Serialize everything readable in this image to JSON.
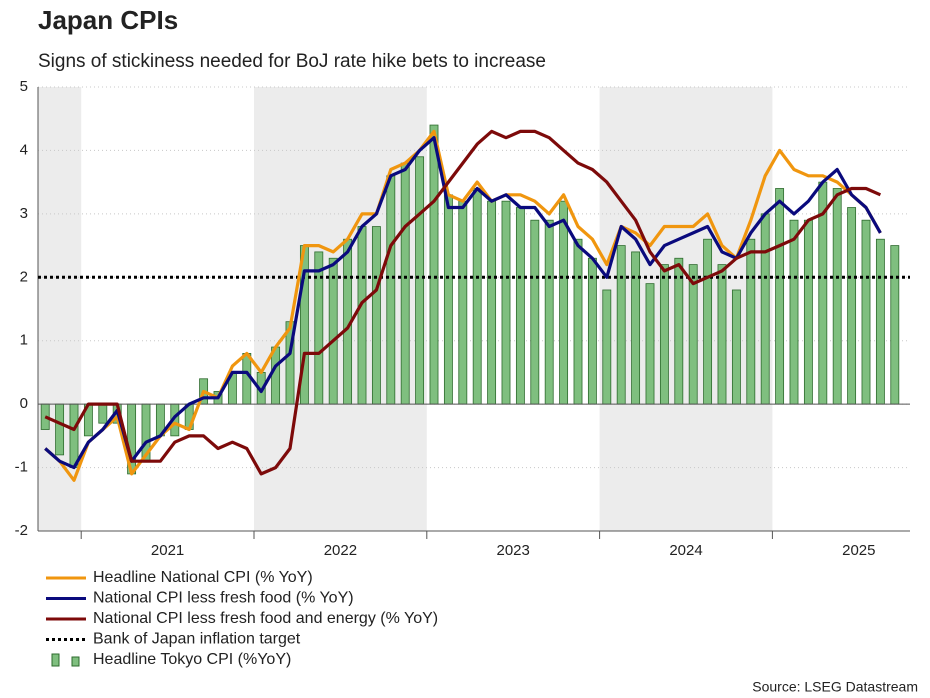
{
  "chart_data": {
    "type": "bar_line",
    "title": "Japan CPIs",
    "subtitle": "Signs of stickiness needed for BoJ rate hike bets to increase",
    "source": "Source: LSEG Datastream",
    "categories": [
      null,
      null,
      null,
      null,
      null,
      null,
      null,
      null,
      null,
      "2021",
      null,
      null,
      null,
      null,
      null,
      null,
      null,
      null,
      null,
      null,
      null,
      "2022",
      null,
      null,
      null,
      null,
      null,
      null,
      null,
      null,
      null,
      null,
      null,
      "2023",
      null,
      null,
      null,
      null,
      null,
      null,
      null,
      null,
      null,
      null,
      null,
      "2024",
      null,
      null,
      null,
      null,
      null,
      null,
      null,
      null,
      null,
      null,
      null,
      "2025",
      null,
      null
    ],
    "ylim": [
      -2,
      5
    ],
    "yticks": [
      -2,
      -1,
      0,
      1,
      2,
      3,
      4,
      5
    ],
    "grid": true,
    "reference_line": {
      "name": "Bank of Japan inflation target",
      "value": 2,
      "color": "#000000"
    },
    "series": [
      {
        "name": "Headline National CPI (% YoY)",
        "type": "line",
        "color": "#f0960f",
        "values": [
          -0.7,
          -0.9,
          -1.2,
          -0.6,
          -0.4,
          -0.2,
          -1.1,
          -0.8,
          -0.5,
          -0.3,
          -0.4,
          0.2,
          0.1,
          0.6,
          0.8,
          0.5,
          0.9,
          1.2,
          2.5,
          2.5,
          2.4,
          2.6,
          3.0,
          3.0,
          3.7,
          3.8,
          4.0,
          4.3,
          3.3,
          3.2,
          3.5,
          3.2,
          3.3,
          3.3,
          3.2,
          3.0,
          3.3,
          2.8,
          2.6,
          2.2,
          2.8,
          2.7,
          2.5,
          2.8,
          2.8,
          2.8,
          3.0,
          2.5,
          2.3,
          2.9,
          3.6,
          4.0,
          3.7,
          3.6,
          3.6,
          3.5,
          3.3,
          3.1,
          2.7,
          null
        ]
      },
      {
        "name": "National CPI less fresh food (% YoY)",
        "type": "line",
        "color": "#0a0a7d",
        "values": [
          -0.7,
          -0.9,
          -1.0,
          -0.6,
          -0.4,
          -0.1,
          -0.9,
          -0.6,
          -0.5,
          -0.2,
          0.0,
          0.1,
          0.1,
          0.5,
          0.5,
          0.2,
          0.6,
          0.8,
          2.1,
          2.1,
          2.2,
          2.4,
          2.8,
          3.0,
          3.6,
          3.7,
          4.0,
          4.2,
          3.1,
          3.1,
          3.4,
          3.2,
          3.3,
          3.1,
          3.1,
          2.8,
          2.9,
          2.5,
          2.3,
          2.0,
          2.8,
          2.6,
          2.2,
          2.5,
          2.6,
          2.7,
          2.8,
          2.4,
          2.3,
          2.7,
          3.0,
          3.2,
          3.0,
          3.2,
          3.5,
          3.7,
          3.3,
          3.1,
          2.7,
          null
        ]
      },
      {
        "name": "National CPI less fresh food and energy (% YoY)",
        "type": "line",
        "color": "#7d0a0a",
        "values": [
          -0.2,
          -0.3,
          -0.4,
          0.0,
          0.0,
          0.0,
          -0.9,
          -0.9,
          -0.9,
          -0.6,
          -0.5,
          -0.5,
          -0.7,
          -0.6,
          -0.7,
          -1.1,
          -1.0,
          -0.7,
          0.8,
          0.8,
          1.0,
          1.2,
          1.6,
          1.8,
          2.5,
          2.8,
          3.0,
          3.2,
          3.5,
          3.8,
          4.1,
          4.3,
          4.2,
          4.3,
          4.3,
          4.2,
          4.0,
          3.8,
          3.7,
          3.5,
          3.2,
          2.9,
          2.4,
          2.1,
          2.2,
          1.9,
          2.0,
          2.1,
          2.3,
          2.4,
          2.4,
          2.5,
          2.6,
          2.9,
          3.0,
          3.3,
          3.4,
          3.4,
          3.3,
          null
        ]
      },
      {
        "name": "Headline Tokyo CPI (%YoY)",
        "type": "bar",
        "color": "#7fbf7f",
        "values": [
          -0.4,
          -0.8,
          -1.0,
          -0.5,
          -0.3,
          -0.3,
          -1.1,
          -0.9,
          -0.5,
          -0.5,
          -0.4,
          0.4,
          0.2,
          0.5,
          0.8,
          0.5,
          0.9,
          1.3,
          2.5,
          2.4,
          2.3,
          2.6,
          2.8,
          2.8,
          3.6,
          3.8,
          3.9,
          4.4,
          3.3,
          3.2,
          3.4,
          3.2,
          3.2,
          3.1,
          2.9,
          2.9,
          3.2,
          2.6,
          2.3,
          1.8,
          2.5,
          2.4,
          1.9,
          2.2,
          2.3,
          2.2,
          2.6,
          2.2,
          1.8,
          2.6,
          3.0,
          3.4,
          2.9,
          2.9,
          3.5,
          3.4,
          3.1,
          2.9,
          2.6,
          2.5
        ]
      }
    ]
  }
}
